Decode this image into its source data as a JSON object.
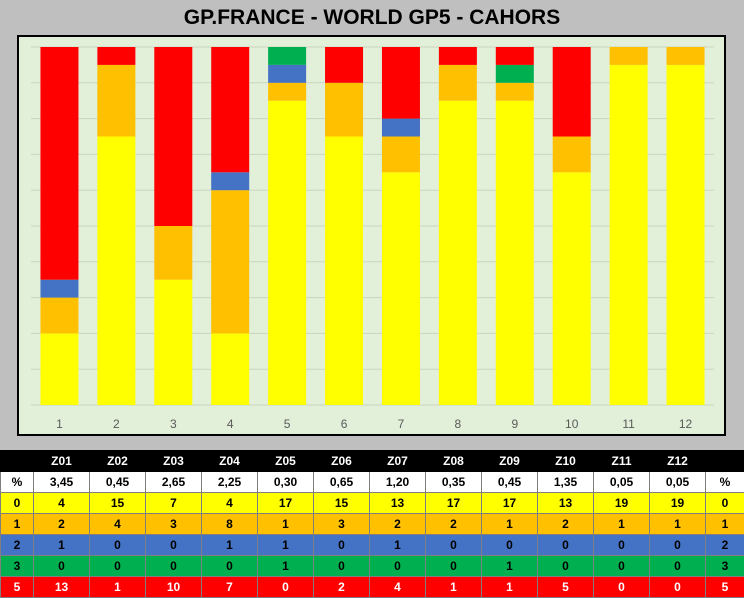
{
  "title": "GP.FRANCE - WORLD GP5  - CAHORS",
  "colors": {
    "c0": "#ffff00",
    "c1": "#ffc000",
    "c2": "#4472c4",
    "c3": "#00b050",
    "c5": "#ff0000",
    "plot_bg": "#e2efd9",
    "gridline": "#c9d5c0"
  },
  "chart_data": {
    "type": "bar",
    "stacked": true,
    "categories": [
      "1",
      "2",
      "3",
      "4",
      "5",
      "6",
      "7",
      "8",
      "9",
      "10",
      "11",
      "12"
    ],
    "series": [
      {
        "name": "0",
        "color": "#ffff00",
        "values": [
          4,
          15,
          7,
          4,
          17,
          15,
          13,
          17,
          17,
          13,
          19,
          19
        ]
      },
      {
        "name": "1",
        "color": "#ffc000",
        "values": [
          2,
          4,
          3,
          8,
          1,
          3,
          2,
          2,
          1,
          2,
          1,
          1
        ]
      },
      {
        "name": "2",
        "color": "#4472c4",
        "values": [
          1,
          0,
          0,
          1,
          1,
          0,
          1,
          0,
          0,
          0,
          0,
          0
        ]
      },
      {
        "name": "3",
        "color": "#00b050",
        "values": [
          0,
          0,
          0,
          0,
          1,
          0,
          0,
          0,
          1,
          0,
          0,
          0
        ]
      },
      {
        "name": "5",
        "color": "#ff0000",
        "values": [
          13,
          1,
          10,
          7,
          0,
          2,
          4,
          1,
          1,
          5,
          0,
          0
        ]
      }
    ],
    "ylim": [
      0,
      20
    ],
    "grid": true
  },
  "table": {
    "header": [
      "",
      "Z01",
      "Z02",
      "Z03",
      "Z04",
      "Z05",
      "Z06",
      "Z07",
      "Z08",
      "Z09",
      "Z10",
      "Z11",
      "Z12",
      ""
    ],
    "rows": [
      {
        "key": "%",
        "cells": [
          "3,45",
          "0,45",
          "2,65",
          "2,25",
          "0,30",
          "0,65",
          "1,20",
          "0,35",
          "0,45",
          "1,35",
          "0,05",
          "0,05"
        ],
        "end": "%"
      },
      {
        "key": "0",
        "cells": [
          "4",
          "15",
          "7",
          "4",
          "17",
          "15",
          "13",
          "17",
          "17",
          "13",
          "19",
          "19"
        ],
        "end": "0"
      },
      {
        "key": "1",
        "cells": [
          "2",
          "4",
          "3",
          "8",
          "1",
          "3",
          "2",
          "2",
          "1",
          "2",
          "1",
          "1"
        ],
        "end": "1"
      },
      {
        "key": "2",
        "cells": [
          "1",
          "0",
          "0",
          "1",
          "1",
          "0",
          "1",
          "0",
          "0",
          "0",
          "0",
          "0"
        ],
        "end": "2"
      },
      {
        "key": "3",
        "cells": [
          "0",
          "0",
          "0",
          "0",
          "1",
          "0",
          "0",
          "0",
          "1",
          "0",
          "0",
          "0"
        ],
        "end": "3"
      },
      {
        "key": "5",
        "cells": [
          "13",
          "1",
          "10",
          "7",
          "0",
          "2",
          "4",
          "1",
          "1",
          "5",
          "0",
          "0"
        ],
        "end": "5"
      }
    ]
  }
}
